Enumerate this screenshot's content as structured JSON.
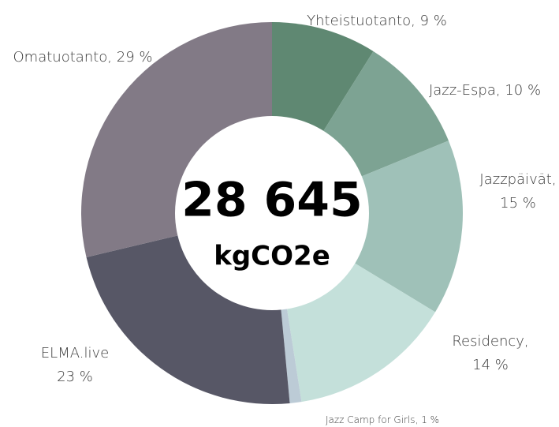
{
  "chart_data": {
    "type": "donut",
    "values": [
      9,
      10,
      15,
      14,
      1,
      23,
      29
    ],
    "value_labels": [
      [
        "Yhteistuotanto, 9 %"
      ],
      [
        "Jazz-Espa, 10 %"
      ],
      [
        "Jazzpäivät,",
        "15 %"
      ],
      [
        "Residency,",
        "14 %"
      ],
      [
        "Jazz Camp for Girls, 1 %"
      ],
      [
        "ELMA.live",
        "23 %"
      ],
      [
        "Omatuotanto, 29 %"
      ]
    ],
    "colors": [
      "#5f8872",
      "#7da393",
      "#9fc1b8",
      "#c4e0da",
      "#bccbd6",
      "#575766",
      "#827a86"
    ],
    "center_text": "28 645",
    "center_unit": "kgCO2e"
  }
}
